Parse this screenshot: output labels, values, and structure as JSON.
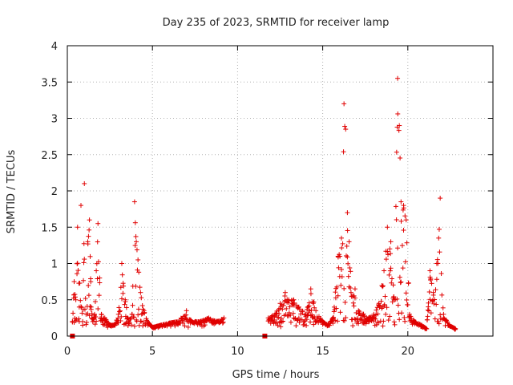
{
  "chart_data": {
    "type": "scatter",
    "title": "Day 235 of 2023, SRMTID for receiver lamp",
    "xlabel": "GPS time / hours",
    "ylabel": "SRMTID / TECUs",
    "xlim": [
      0,
      25
    ],
    "ylim": [
      0,
      4
    ],
    "xticks": [
      0,
      5,
      10,
      15,
      20
    ],
    "yticks": [
      0,
      0.5,
      1,
      1.5,
      2,
      2.5,
      3,
      3.5,
      4
    ],
    "grid": true,
    "marker": "plus",
    "color": "#e00000",
    "gap_markers": [
      {
        "x": 0.3,
        "y": 0
      },
      {
        "x": 11.6,
        "y": 0
      }
    ],
    "series": [
      {
        "name": "SRMTID",
        "envelope": [
          [
            0.3,
            0.2
          ],
          [
            0.4,
            0.75
          ],
          [
            0.5,
            0.5
          ],
          [
            0.6,
            1.5
          ],
          [
            0.7,
            0.4
          ],
          [
            0.8,
            1.8
          ],
          [
            0.9,
            0.2
          ],
          [
            1.0,
            2.1
          ],
          [
            1.1,
            0.3
          ],
          [
            1.2,
            1.3
          ],
          [
            1.3,
            1.6
          ],
          [
            1.4,
            0.4
          ],
          [
            1.5,
            0.2
          ],
          [
            1.6,
            0.3
          ],
          [
            1.7,
            0.9
          ],
          [
            1.8,
            1.55
          ],
          [
            1.9,
            0.8
          ],
          [
            2.0,
            0.3
          ],
          [
            2.2,
            0.25
          ],
          [
            2.5,
            0.15
          ],
          [
            2.8,
            0.15
          ],
          [
            3.0,
            0.3
          ],
          [
            3.2,
            1.0
          ],
          [
            3.4,
            0.5
          ],
          [
            3.6,
            0.2
          ],
          [
            3.8,
            0.3
          ],
          [
            3.95,
            1.85
          ],
          [
            4.05,
            1.3
          ],
          [
            4.15,
            1.05
          ],
          [
            4.3,
            0.6
          ],
          [
            4.5,
            0.35
          ],
          [
            4.7,
            0.2
          ],
          [
            5.0,
            0.12
          ],
          [
            5.5,
            0.15
          ],
          [
            6.0,
            0.18
          ],
          [
            6.5,
            0.2
          ],
          [
            7.0,
            0.35
          ],
          [
            7.3,
            0.2
          ],
          [
            7.8,
            0.2
          ],
          [
            8.3,
            0.25
          ],
          [
            8.8,
            0.2
          ],
          [
            9.2,
            0.25
          ],
          [
            11.8,
            0.25
          ],
          [
            12.2,
            0.3
          ],
          [
            12.5,
            0.45
          ],
          [
            12.8,
            0.6
          ],
          [
            13.0,
            0.5
          ],
          [
            13.3,
            0.5
          ],
          [
            13.6,
            0.4
          ],
          [
            14.0,
            0.3
          ],
          [
            14.3,
            0.65
          ],
          [
            14.6,
            0.35
          ],
          [
            15.0,
            0.2
          ],
          [
            15.3,
            0.15
          ],
          [
            15.6,
            0.25
          ],
          [
            15.9,
            1.1
          ],
          [
            16.1,
            1.35
          ],
          [
            16.25,
            3.2
          ],
          [
            16.35,
            2.85
          ],
          [
            16.45,
            1.7
          ],
          [
            16.55,
            1.3
          ],
          [
            16.7,
            0.55
          ],
          [
            16.9,
            0.65
          ],
          [
            17.1,
            0.35
          ],
          [
            17.4,
            0.3
          ],
          [
            17.7,
            0.25
          ],
          [
            18.0,
            0.3
          ],
          [
            18.3,
            0.45
          ],
          [
            18.6,
            0.9
          ],
          [
            18.8,
            1.5
          ],
          [
            19.0,
            1.3
          ],
          [
            19.2,
            0.5
          ],
          [
            19.4,
            3.55
          ],
          [
            19.5,
            2.9
          ],
          [
            19.6,
            1.85
          ],
          [
            19.75,
            1.8
          ],
          [
            19.9,
            1.6
          ],
          [
            20.1,
            0.3
          ],
          [
            20.4,
            0.2
          ],
          [
            20.8,
            0.15
          ],
          [
            21.1,
            0.1
          ],
          [
            21.3,
            0.9
          ],
          [
            21.5,
            0.6
          ],
          [
            21.7,
            1.0
          ],
          [
            21.9,
            1.9
          ],
          [
            22.1,
            0.3
          ],
          [
            22.4,
            0.15
          ],
          [
            22.8,
            0.1
          ]
        ]
      }
    ]
  }
}
